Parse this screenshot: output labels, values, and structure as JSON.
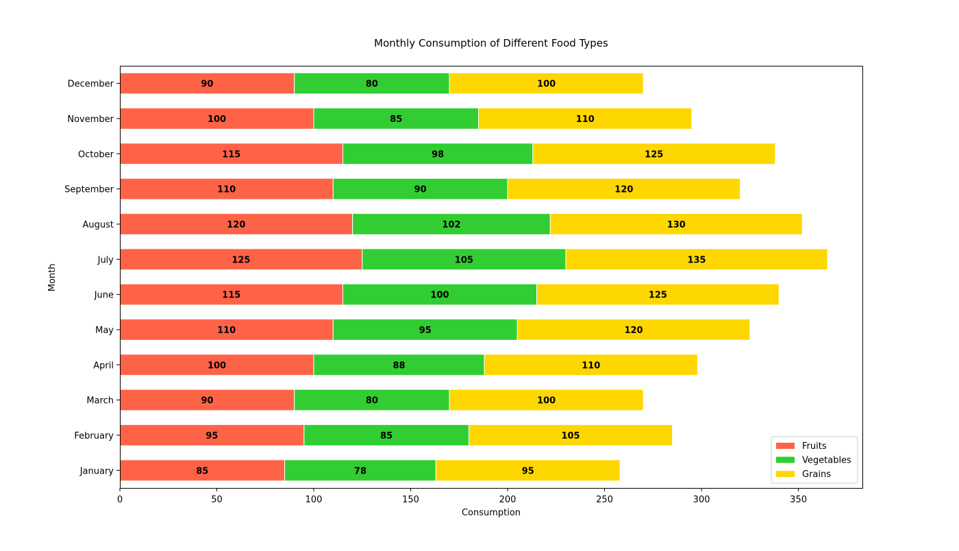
{
  "chart_data": {
    "type": "bar",
    "orientation": "horizontal",
    "stacked": true,
    "title": "Monthly Consumption of Different Food Types",
    "xlabel": "Consumption",
    "ylabel": "Month",
    "xlim": [
      0,
      383
    ],
    "xticks": [
      0,
      50,
      100,
      150,
      200,
      250,
      300,
      350
    ],
    "grid": false,
    "legend_position": "lower-right",
    "categories": [
      "January",
      "February",
      "March",
      "April",
      "May",
      "June",
      "July",
      "August",
      "September",
      "October",
      "November",
      "December"
    ],
    "series": [
      {
        "name": "Fruits",
        "color": "#FF6347",
        "values": [
          85,
          95,
          90,
          100,
          110,
          115,
          125,
          120,
          110,
          115,
          100,
          90
        ]
      },
      {
        "name": "Vegetables",
        "color": "#32CD32",
        "values": [
          78,
          85,
          80,
          88,
          95,
          100,
          105,
          102,
          90,
          98,
          85,
          80
        ]
      },
      {
        "name": "Grains",
        "color": "#FFD700",
        "values": [
          95,
          105,
          100,
          110,
          120,
          125,
          135,
          130,
          120,
          125,
          110,
          100
        ]
      }
    ]
  }
}
